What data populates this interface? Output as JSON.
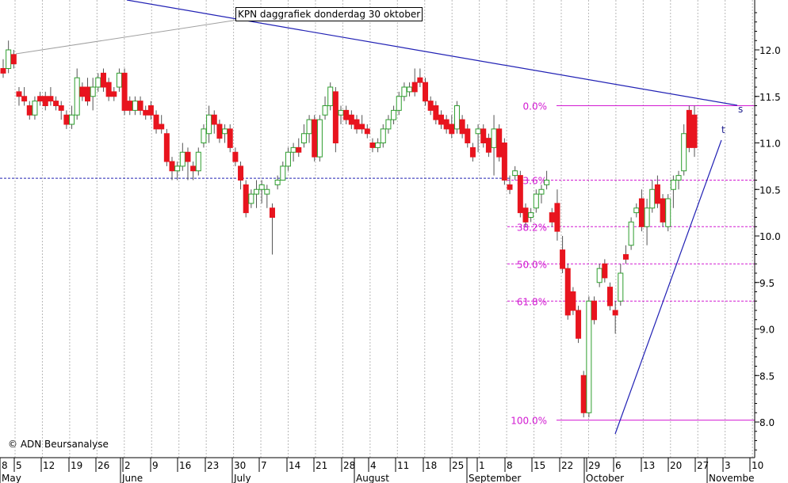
{
  "title": "KPN daggrafiek donderdag 30 oktober",
  "copyright": "© ADN Beursanalyse",
  "colors": {
    "background": "#ffffff",
    "grid": "#b8b8b8",
    "up_candle": "#2e9e2e",
    "down_candle": "#e8141e",
    "wick": "#555555",
    "fib_line": "#d21ad2",
    "trendline": "#2020b4",
    "support_dashed": "#2020b4",
    "early_trend": "#a0a0a0"
  },
  "chart_data": {
    "type": "candlestick",
    "ylim": [
      7.6,
      12.5
    ],
    "yticks": [
      8.0,
      8.5,
      9.0,
      9.5,
      10.0,
      10.5,
      11.0,
      11.5,
      12.0
    ],
    "ytick_labels": [
      "8.0",
      "8.5",
      "9.0",
      "9.5",
      "10.0",
      "10.5",
      "11.0",
      "11.5",
      "12.0"
    ],
    "x_day_labels": [
      "8",
      "5",
      "12",
      "19",
      "26",
      "2",
      "9",
      "16",
      "23",
      "30",
      "7",
      "14",
      "21",
      "28",
      "4",
      "11",
      "18",
      "25",
      "1",
      "8",
      "15",
      "22",
      "29",
      "6",
      "13",
      "20",
      "27",
      "3",
      "10"
    ],
    "x_month_labels": [
      "May",
      "June",
      "July",
      "August",
      "September",
      "October",
      "Novembe"
    ],
    "fibonacci": [
      {
        "label": "0.0%",
        "value": 11.4
      },
      {
        "label": "23.6%",
        "value": 10.6
      },
      {
        "label": "38.2%",
        "value": 10.1
      },
      {
        "label": "50.0%",
        "value": 9.7
      },
      {
        "label": "61.8%",
        "value": 9.3
      },
      {
        "label": "100.0%",
        "value": 8.02
      }
    ],
    "support_level": 10.62,
    "trendline_labels": [
      "s",
      "t"
    ],
    "candles": [
      [
        11.8,
        11.9,
        11.7,
        11.75
      ],
      [
        11.8,
        12.1,
        11.75,
        12.0
      ],
      [
        11.95,
        12.0,
        11.8,
        11.85
      ],
      [
        11.55,
        11.6,
        11.4,
        11.5
      ],
      [
        11.5,
        11.6,
        11.4,
        11.45
      ],
      [
        11.4,
        11.45,
        11.25,
        11.3
      ],
      [
        11.3,
        11.5,
        11.25,
        11.45
      ],
      [
        11.5,
        11.55,
        11.4,
        11.45
      ],
      [
        11.5,
        11.55,
        11.35,
        11.4
      ],
      [
        11.5,
        11.6,
        11.4,
        11.45
      ],
      [
        11.45,
        11.5,
        11.35,
        11.4
      ],
      [
        11.4,
        11.45,
        11.25,
        11.35
      ],
      [
        11.3,
        11.35,
        11.15,
        11.2
      ],
      [
        11.2,
        11.4,
        11.15,
        11.3
      ],
      [
        11.3,
        11.8,
        11.25,
        11.7
      ],
      [
        11.6,
        11.65,
        11.45,
        11.5
      ],
      [
        11.6,
        11.7,
        11.4,
        11.45
      ],
      [
        11.5,
        11.7,
        11.35,
        11.6
      ],
      [
        11.6,
        11.75,
        11.55,
        11.7
      ],
      [
        11.75,
        11.8,
        11.55,
        11.6
      ],
      [
        11.65,
        11.7,
        11.45,
        11.5
      ],
      [
        11.55,
        11.6,
        11.45,
        11.5
      ],
      [
        11.6,
        11.8,
        11.55,
        11.75
      ],
      [
        11.75,
        11.8,
        11.3,
        11.35
      ],
      [
        11.45,
        11.5,
        11.3,
        11.35
      ],
      [
        11.35,
        11.5,
        11.3,
        11.45
      ],
      [
        11.45,
        11.5,
        11.3,
        11.35
      ],
      [
        11.35,
        11.4,
        11.25,
        11.3
      ],
      [
        11.4,
        11.45,
        11.25,
        11.3
      ],
      [
        11.3,
        11.35,
        11.1,
        11.15
      ],
      [
        11.2,
        11.3,
        11.1,
        11.15
      ],
      [
        11.1,
        11.15,
        10.75,
        10.8
      ],
      [
        10.8,
        10.85,
        10.6,
        10.7
      ],
      [
        10.7,
        10.8,
        10.6,
        10.75
      ],
      [
        10.75,
        11.0,
        10.7,
        10.9
      ],
      [
        10.9,
        10.95,
        10.6,
        10.8
      ],
      [
        10.75,
        10.8,
        10.6,
        10.7
      ],
      [
        10.7,
        10.95,
        10.65,
        10.9
      ],
      [
        11.0,
        11.2,
        10.95,
        11.15
      ],
      [
        11.1,
        11.4,
        11.0,
        11.3
      ],
      [
        11.3,
        11.35,
        11.1,
        11.2
      ],
      [
        11.2,
        11.25,
        11.0,
        11.05
      ],
      [
        11.1,
        11.2,
        11.0,
        11.15
      ],
      [
        11.15,
        11.2,
        10.9,
        10.95
      ],
      [
        10.9,
        10.95,
        10.75,
        10.8
      ],
      [
        10.75,
        10.8,
        10.5,
        10.6
      ],
      [
        10.55,
        10.6,
        10.2,
        10.25
      ],
      [
        10.35,
        10.5,
        10.3,
        10.45
      ],
      [
        10.45,
        10.6,
        10.3,
        10.5
      ],
      [
        10.5,
        10.6,
        10.35,
        10.55
      ],
      [
        10.45,
        10.55,
        10.3,
        10.5
      ],
      [
        10.3,
        10.35,
        9.8,
        10.2
      ],
      [
        10.55,
        10.65,
        10.5,
        10.6
      ],
      [
        10.6,
        10.8,
        10.6,
        10.75
      ],
      [
        10.75,
        10.95,
        10.7,
        10.9
      ],
      [
        10.9,
        11.0,
        10.8,
        10.95
      ],
      [
        10.95,
        11.05,
        10.85,
        10.9
      ],
      [
        11.0,
        11.2,
        10.95,
        11.1
      ],
      [
        11.1,
        11.3,
        11.0,
        11.25
      ],
      [
        11.25,
        11.3,
        10.8,
        10.85
      ],
      [
        10.85,
        11.3,
        10.8,
        11.25
      ],
      [
        11.3,
        11.5,
        11.25,
        11.4
      ],
      [
        11.4,
        11.65,
        11.35,
        11.6
      ],
      [
        11.55,
        11.6,
        10.9,
        11.0
      ],
      [
        11.3,
        11.4,
        11.2,
        11.35
      ],
      [
        11.35,
        11.4,
        11.2,
        11.25
      ],
      [
        11.3,
        11.35,
        11.15,
        11.2
      ],
      [
        11.25,
        11.3,
        11.1,
        11.15
      ],
      [
        11.2,
        11.3,
        11.1,
        11.15
      ],
      [
        11.15,
        11.2,
        11.05,
        11.1
      ],
      [
        11.0,
        11.05,
        10.9,
        10.95
      ],
      [
        10.95,
        11.05,
        10.9,
        11.0
      ],
      [
        11.0,
        11.2,
        10.95,
        11.15
      ],
      [
        11.15,
        11.3,
        11.1,
        11.25
      ],
      [
        11.25,
        11.4,
        11.2,
        11.35
      ],
      [
        11.35,
        11.55,
        11.3,
        11.5
      ],
      [
        11.5,
        11.65,
        11.45,
        11.6
      ],
      [
        11.55,
        11.65,
        11.5,
        11.6
      ],
      [
        11.65,
        11.8,
        11.5,
        11.55
      ],
      [
        11.7,
        11.8,
        11.6,
        11.65
      ],
      [
        11.65,
        11.7,
        11.4,
        11.45
      ],
      [
        11.45,
        11.5,
        11.3,
        11.35
      ],
      [
        11.4,
        11.45,
        11.2,
        11.25
      ],
      [
        11.3,
        11.35,
        11.15,
        11.2
      ],
      [
        11.25,
        11.3,
        11.1,
        11.15
      ],
      [
        11.2,
        11.3,
        11.05,
        11.1
      ],
      [
        11.15,
        11.45,
        11.1,
        11.4
      ],
      [
        11.25,
        11.3,
        11.05,
        11.1
      ],
      [
        11.15,
        11.2,
        10.95,
        11.0
      ],
      [
        10.95,
        11.0,
        10.8,
        10.85
      ],
      [
        11.1,
        11.2,
        10.9,
        11.15
      ],
      [
        11.15,
        11.2,
        10.95,
        11.0
      ],
      [
        11.05,
        11.1,
        10.85,
        10.9
      ],
      [
        10.95,
        11.3,
        10.65,
        11.15
      ],
      [
        11.15,
        11.2,
        10.8,
        10.85
      ],
      [
        11.0,
        11.05,
        10.55,
        10.6
      ],
      [
        10.55,
        10.65,
        10.45,
        10.5
      ],
      [
        10.65,
        10.75,
        10.6,
        10.7
      ],
      [
        10.65,
        10.7,
        10.2,
        10.25
      ],
      [
        10.3,
        10.35,
        10.1,
        10.15
      ],
      [
        10.2,
        10.3,
        10.15,
        10.25
      ],
      [
        10.3,
        10.5,
        10.25,
        10.45
      ],
      [
        10.45,
        10.55,
        10.35,
        10.5
      ],
      [
        10.55,
        10.7,
        10.5,
        10.6
      ],
      [
        10.25,
        10.3,
        10.1,
        10.15
      ],
      [
        10.35,
        10.5,
        9.95,
        10.05
      ],
      [
        9.85,
        10.0,
        9.6,
        9.65
      ],
      [
        9.65,
        9.7,
        9.1,
        9.15
      ],
      [
        9.4,
        9.45,
        9.15,
        9.2
      ],
      [
        9.2,
        9.25,
        8.85,
        8.9
      ],
      [
        8.5,
        8.55,
        8.05,
        8.1
      ],
      [
        8.1,
        9.35,
        8.05,
        9.3
      ],
      [
        9.3,
        9.35,
        9.05,
        9.1
      ],
      [
        9.5,
        9.7,
        9.45,
        9.65
      ],
      [
        9.7,
        9.75,
        9.5,
        9.55
      ],
      [
        9.45,
        9.5,
        9.2,
        9.25
      ],
      [
        9.2,
        9.3,
        8.95,
        9.15
      ],
      [
        9.3,
        9.7,
        9.25,
        9.6
      ],
      [
        9.8,
        9.9,
        9.7,
        9.75
      ],
      [
        9.9,
        10.2,
        9.85,
        10.15
      ],
      [
        10.25,
        10.35,
        10.2,
        10.3
      ],
      [
        10.4,
        10.5,
        10.05,
        10.1
      ],
      [
        10.1,
        10.4,
        9.9,
        10.3
      ],
      [
        10.3,
        10.6,
        10.25,
        10.5
      ],
      [
        10.55,
        10.65,
        10.3,
        10.35
      ],
      [
        10.4,
        10.45,
        10.1,
        10.15
      ],
      [
        10.1,
        10.45,
        10.05,
        10.4
      ],
      [
        10.5,
        10.65,
        10.3,
        10.6
      ],
      [
        10.6,
        10.7,
        10.5,
        10.65
      ],
      [
        10.7,
        11.2,
        10.65,
        11.1
      ],
      [
        11.35,
        11.4,
        10.9,
        10.95
      ],
      [
        11.3,
        11.4,
        10.85,
        10.95
      ]
    ]
  }
}
